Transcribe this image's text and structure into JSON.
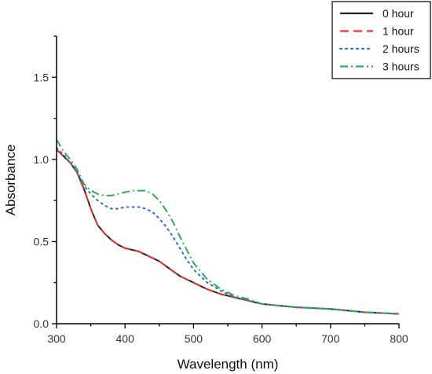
{
  "chart_data": {
    "type": "line",
    "xlabel": "Wavelength (nm)",
    "ylabel": "Absorbance",
    "xlim": [
      300,
      800
    ],
    "ylim": [
      0.0,
      1.75
    ],
    "x_ticks": [
      300,
      400,
      500,
      600,
      700,
      800
    ],
    "x_tick_labels": [
      "300",
      "400",
      "500",
      "600",
      "700",
      "800"
    ],
    "y_ticks": [
      0.0,
      0.5,
      1.0,
      1.5
    ],
    "y_tick_labels": [
      "0.0",
      "0.5",
      "1.0",
      "1.5"
    ],
    "grid": false,
    "legend_position": "top-right",
    "x": [
      300,
      310,
      320,
      330,
      340,
      350,
      360,
      370,
      380,
      390,
      400,
      410,
      420,
      430,
      440,
      450,
      460,
      470,
      480,
      490,
      500,
      520,
      540,
      560,
      580,
      600,
      650,
      700,
      750,
      800
    ],
    "series": [
      {
        "name": "0 hour",
        "color": "#222222",
        "dash": "solid",
        "values": [
          1.06,
          1.02,
          0.98,
          0.92,
          0.82,
          0.7,
          0.6,
          0.55,
          0.51,
          0.48,
          0.46,
          0.45,
          0.44,
          0.42,
          0.4,
          0.38,
          0.35,
          0.32,
          0.29,
          0.27,
          0.25,
          0.21,
          0.18,
          0.16,
          0.14,
          0.12,
          0.1,
          0.09,
          0.07,
          0.06
        ]
      },
      {
        "name": "1 hour",
        "color": "#e8312a",
        "dash": "dashed",
        "values": [
          1.06,
          1.02,
          0.98,
          0.92,
          0.82,
          0.7,
          0.6,
          0.55,
          0.51,
          0.48,
          0.46,
          0.45,
          0.44,
          0.42,
          0.4,
          0.38,
          0.35,
          0.32,
          0.29,
          0.27,
          0.25,
          0.21,
          0.18,
          0.16,
          0.14,
          0.12,
          0.1,
          0.09,
          0.07,
          0.06
        ]
      },
      {
        "name": "2 hours",
        "color": "#2d6fc7",
        "dash": "dotted",
        "values": [
          1.07,
          1.03,
          0.98,
          0.92,
          0.84,
          0.79,
          0.75,
          0.72,
          0.7,
          0.7,
          0.71,
          0.71,
          0.71,
          0.7,
          0.68,
          0.64,
          0.59,
          0.53,
          0.46,
          0.39,
          0.33,
          0.25,
          0.2,
          0.16,
          0.14,
          0.12,
          0.1,
          0.09,
          0.07,
          0.06
        ]
      },
      {
        "name": "3 hours",
        "color": "#2faa4e",
        "dash": "dashdot",
        "values": [
          1.12,
          1.05,
          1.0,
          0.94,
          0.85,
          0.81,
          0.79,
          0.78,
          0.78,
          0.79,
          0.8,
          0.81,
          0.81,
          0.81,
          0.79,
          0.75,
          0.69,
          0.62,
          0.53,
          0.45,
          0.37,
          0.27,
          0.21,
          0.17,
          0.15,
          0.12,
          0.1,
          0.09,
          0.07,
          0.06
        ]
      }
    ]
  }
}
